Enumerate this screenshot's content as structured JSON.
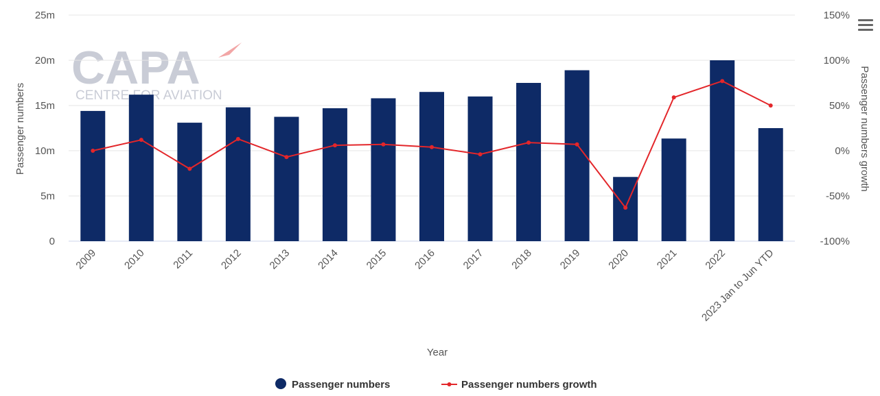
{
  "chart_data": {
    "type": "bar",
    "categories": [
      "2009",
      "2010",
      "2011",
      "2012",
      "2013",
      "2014",
      "2015",
      "2016",
      "2017",
      "2018",
      "2019",
      "2020",
      "2021",
      "2022",
      "2023 Jan to Jun YTD"
    ],
    "series": [
      {
        "name": "Passenger numbers",
        "type": "bar",
        "axis": "left",
        "color": "#0e2a66",
        "values": [
          14.4,
          16.2,
          13.1,
          14.8,
          13.75,
          14.7,
          15.8,
          16.5,
          16.0,
          17.5,
          18.9,
          7.1,
          11.35,
          20.0,
          12.5
        ]
      },
      {
        "name": "Passenger numbers growth",
        "type": "line",
        "axis": "right",
        "color": "#e3262a",
        "values": [
          0,
          12,
          -20,
          13,
          -7,
          6,
          7,
          4,
          -4,
          9,
          7,
          -63,
          59,
          77,
          50
        ]
      }
    ],
    "xlabel": "Year",
    "ylabel": "Passenger numbers",
    "y2label": "Passenger numbers growth",
    "ylim": [
      0,
      25
    ],
    "y2lim": [
      -100,
      150
    ],
    "yticks": [
      "0",
      "5m",
      "10m",
      "15m",
      "20m",
      "25m"
    ],
    "y2ticks": [
      "-100%",
      "-50%",
      "0%",
      "50%",
      "100%",
      "150%"
    ],
    "legend_position": "bottom-center"
  },
  "watermark": {
    "brand": "CAPA",
    "tagline": "CENTRE FOR AVIATION"
  },
  "menu": {
    "icon": "hamburger-menu-icon"
  }
}
